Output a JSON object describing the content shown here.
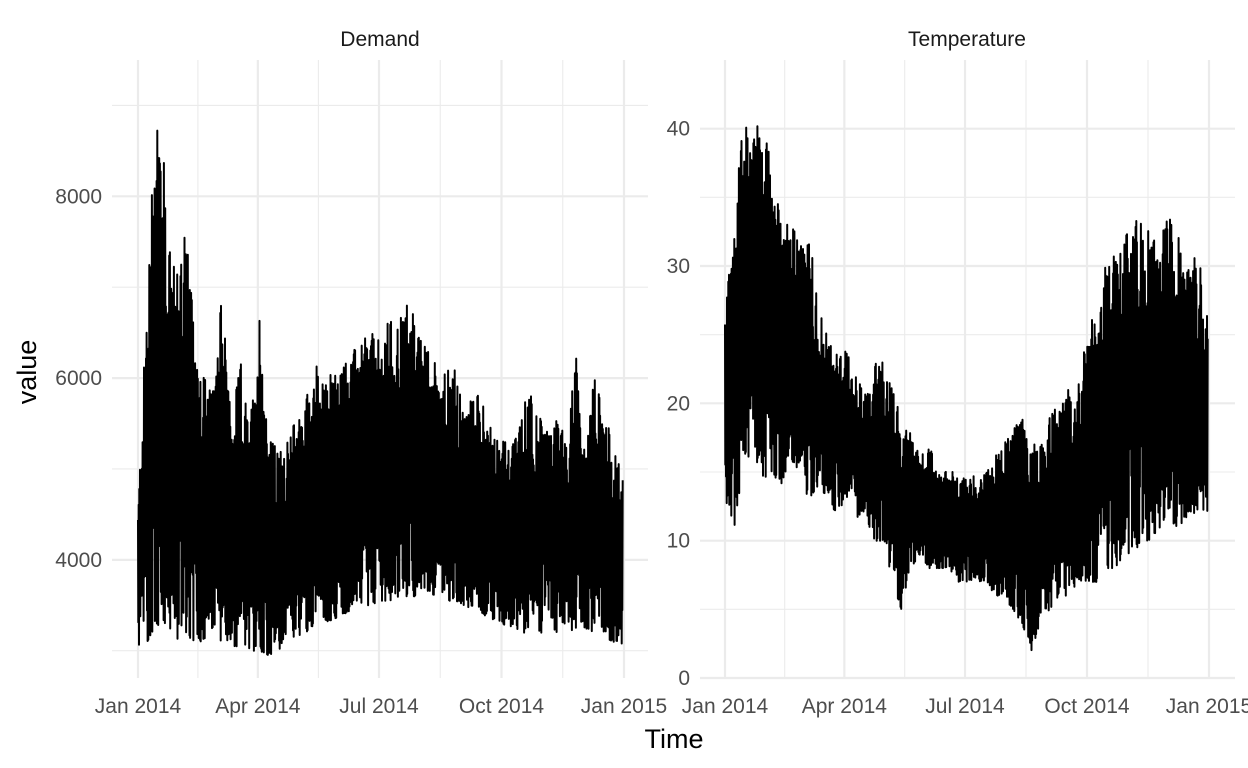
{
  "chart_data": {
    "type": "line",
    "xlabel": "Time",
    "ylabel": "value",
    "facets": [
      {
        "title": "Demand",
        "x_ticks": [
          "Jan 2014",
          "Apr 2014",
          "Jul 2014",
          "Oct 2014",
          "Jan 2015"
        ],
        "y_ticks": [
          4000,
          6000,
          8000
        ],
        "ylim": [
          2800,
          9500
        ],
        "series": {
          "x": [
            "2014-01-01",
            "2014-01-08",
            "2014-01-15",
            "2014-01-22",
            "2014-01-29",
            "2014-02-05",
            "2014-02-12",
            "2014-02-19",
            "2014-02-26",
            "2014-03-05",
            "2014-03-12",
            "2014-03-19",
            "2014-03-26",
            "2014-04-02",
            "2014-04-09",
            "2014-04-16",
            "2014-04-23",
            "2014-04-30",
            "2014-05-07",
            "2014-05-14",
            "2014-05-21",
            "2014-05-28",
            "2014-06-04",
            "2014-06-11",
            "2014-06-18",
            "2014-06-25",
            "2014-07-02",
            "2014-07-09",
            "2014-07-16",
            "2014-07-23",
            "2014-07-30",
            "2014-08-06",
            "2014-08-13",
            "2014-08-20",
            "2014-08-27",
            "2014-09-03",
            "2014-09-10",
            "2014-09-17",
            "2014-09-24",
            "2014-10-01",
            "2014-10-08",
            "2014-10-15",
            "2014-10-22",
            "2014-10-29",
            "2014-11-05",
            "2014-11-12",
            "2014-11-19",
            "2014-11-26",
            "2014-12-03",
            "2014-12-10",
            "2014-12-17",
            "2014-12-24",
            "2014-12-31"
          ],
          "min": [
            3000,
            3100,
            3300,
            3200,
            3100,
            3200,
            3100,
            3100,
            3200,
            3100,
            3050,
            3050,
            3000,
            3000,
            2950,
            3000,
            3100,
            3150,
            3200,
            3300,
            3300,
            3350,
            3400,
            3450,
            3500,
            3500,
            3550,
            3550,
            3600,
            3600,
            3600,
            3650,
            3600,
            3550,
            3550,
            3500,
            3450,
            3400,
            3350,
            3300,
            3250,
            3200,
            3200,
            3200,
            3200,
            3200,
            3200,
            3250,
            3250,
            3200,
            3150,
            3100,
            3050
          ],
          "max": [
            4600,
            7000,
            9300,
            8100,
            7100,
            7800,
            6600,
            6100,
            5800,
            6900,
            5500,
            6200,
            5400,
            6800,
            5400,
            5200,
            5300,
            5600,
            5800,
            6200,
            5900,
            6200,
            6100,
            6300,
            6400,
            6500,
            6400,
            6700,
            6600,
            6900,
            6500,
            6300,
            6200,
            6100,
            6100,
            5600,
            5900,
            5700,
            5400,
            5400,
            5200,
            5500,
            6000,
            5600,
            5400,
            5600,
            5300,
            6300,
            5100,
            6100,
            5700,
            5200,
            5000
          ]
        }
      },
      {
        "title": "Temperature",
        "x_ticks": [
          "Jan 2014",
          "Apr 2014",
          "Jul 2014",
          "Oct 2014",
          "Jan 2015"
        ],
        "y_ticks": [
          0,
          10,
          20,
          30,
          40
        ],
        "ylim": [
          0,
          45
        ],
        "series": {
          "x": [
            "2014-01-01",
            "2014-01-08",
            "2014-01-15",
            "2014-01-22",
            "2014-01-29",
            "2014-02-05",
            "2014-02-12",
            "2014-02-19",
            "2014-02-26",
            "2014-03-05",
            "2014-03-12",
            "2014-03-19",
            "2014-03-26",
            "2014-04-02",
            "2014-04-09",
            "2014-04-16",
            "2014-04-23",
            "2014-04-30",
            "2014-05-07",
            "2014-05-14",
            "2014-05-21",
            "2014-05-28",
            "2014-06-04",
            "2014-06-11",
            "2014-06-18",
            "2014-06-25",
            "2014-07-02",
            "2014-07-09",
            "2014-07-16",
            "2014-07-23",
            "2014-07-30",
            "2014-08-06",
            "2014-08-13",
            "2014-08-20",
            "2014-08-27",
            "2014-09-03",
            "2014-09-10",
            "2014-09-17",
            "2014-09-24",
            "2014-10-01",
            "2014-10-08",
            "2014-10-15",
            "2014-10-22",
            "2014-10-29",
            "2014-11-05",
            "2014-11-12",
            "2014-11-19",
            "2014-11-26",
            "2014-12-03",
            "2014-12-10",
            "2014-12-17",
            "2014-12-24",
            "2014-12-31"
          ],
          "min": [
            13,
            11,
            15,
            17,
            14,
            15,
            14,
            16,
            15,
            13,
            14,
            13,
            12,
            13,
            12,
            11,
            10,
            10,
            7,
            5,
            8,
            9,
            8,
            8,
            8,
            7,
            7,
            7,
            7,
            6,
            6,
            5,
            4,
            2,
            4,
            5,
            6,
            6,
            7,
            7,
            7,
            8,
            8,
            9,
            9,
            10,
            10,
            11,
            11,
            11,
            12,
            12,
            12
          ],
          "max": [
            26,
            34,
            43,
            41,
            40,
            38,
            33,
            33,
            32,
            33,
            27,
            25,
            24,
            24,
            22,
            21,
            23,
            23,
            21,
            19,
            18,
            16,
            17,
            16,
            15,
            15,
            15,
            15,
            15,
            16,
            17,
            18,
            19,
            17,
            18,
            19,
            20,
            21,
            21,
            25,
            27,
            30,
            31,
            32,
            33,
            34,
            32,
            33,
            34,
            32,
            30,
            31,
            26
          ]
        }
      }
    ]
  }
}
